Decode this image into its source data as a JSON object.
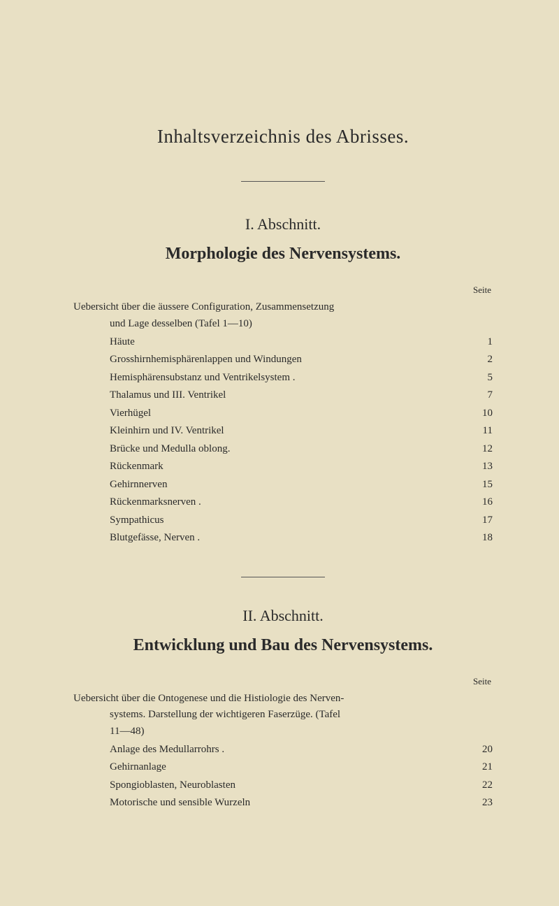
{
  "main_title": "Inhaltsverzeichnis des Abrisses.",
  "seite_label": "Seite",
  "section1": {
    "number": "I. Abschnitt.",
    "title": "Morphologie des Nervensystems.",
    "intro_line1": "Uebersicht über die äussere Configuration, Zusammensetzung",
    "intro_line2": "und Lage desselben (Tafel 1—10)",
    "entries": [
      {
        "label": "Häute",
        "page": "1"
      },
      {
        "label": "Grosshirnhemisphärenlappen und Windungen",
        "page": "2"
      },
      {
        "label": "Hemisphärensubstanz und Ventrikelsystem .",
        "page": "5"
      },
      {
        "label": "Thalamus und III. Ventrikel",
        "page": "7"
      },
      {
        "label": "Vierhügel",
        "page": "10"
      },
      {
        "label": "Kleinhirn und IV. Ventrikel",
        "page": "11"
      },
      {
        "label": "Brücke und Medulla oblong.",
        "page": "12"
      },
      {
        "label": "Rückenmark",
        "page": "13"
      },
      {
        "label": "Gehirnnerven",
        "page": "15"
      },
      {
        "label": "Rückenmarksnerven .",
        "page": "16"
      },
      {
        "label": "Sympathicus",
        "page": "17"
      },
      {
        "label": "Blutgefässe, Nerven .",
        "page": "18"
      }
    ]
  },
  "section2": {
    "number": "II. Abschnitt.",
    "title": "Entwicklung und Bau des Nervensystems.",
    "intro_line1": "Uebersicht über die Ontogenese und die Histiologie des Nerven-",
    "intro_line2": "systems. Darstellung der wichtigeren Faserzüge. (Tafel",
    "intro_line3": "11—48)",
    "entries": [
      {
        "label": "Anlage des Medullarrohrs .",
        "page": "20"
      },
      {
        "label": "Gehirnanlage",
        "page": "21"
      },
      {
        "label": "Spongioblasten, Neuroblasten",
        "page": "22"
      },
      {
        "label": "Motorische und sensible Wurzeln",
        "page": "23"
      }
    ]
  }
}
